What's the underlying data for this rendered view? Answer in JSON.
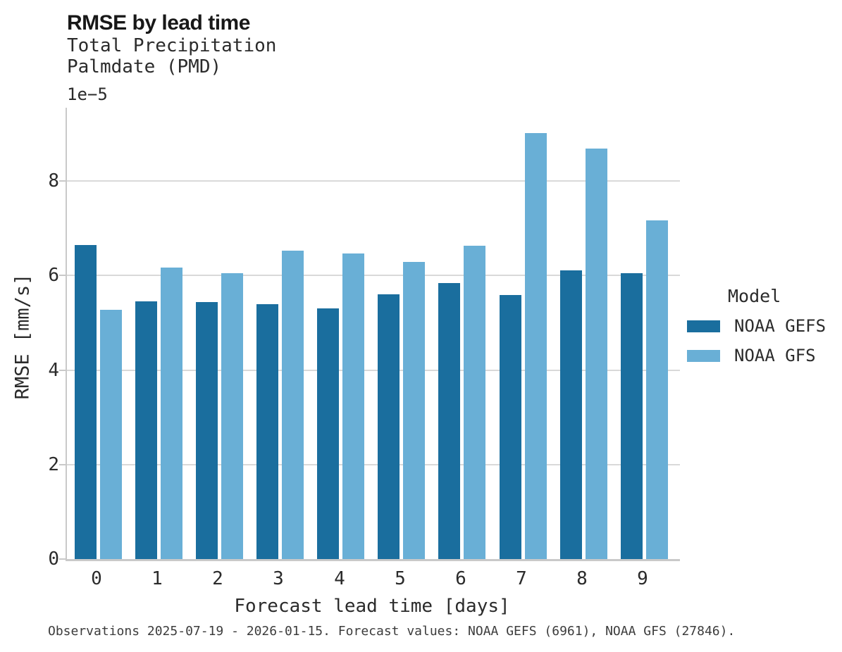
{
  "chart_data": {
    "type": "bar",
    "title": "RMSE by lead time",
    "subtitle": [
      "Total Precipitation",
      "Palmdate (PMD)"
    ],
    "y_offset_label": "1e−5",
    "ylabel": "RMSE [mm/s]",
    "xlabel": "Forecast lead time [days]",
    "categories": [
      "0",
      "1",
      "2",
      "3",
      "4",
      "5",
      "6",
      "7",
      "8",
      "9"
    ],
    "series": [
      {
        "name": "NOAA GEFS",
        "color": "#1a6e9e",
        "values": [
          6.65,
          5.46,
          5.44,
          5.4,
          5.31,
          5.6,
          5.84,
          5.58,
          6.11,
          6.05
        ]
      },
      {
        "name": "NOAA GFS",
        "color": "#69afd6",
        "values": [
          5.27,
          6.17,
          6.05,
          6.52,
          6.47,
          6.29,
          6.63,
          9.02,
          8.68,
          7.16
        ]
      }
    ],
    "value_scale": "1e-5",
    "ylim": [
      0,
      9.55
    ],
    "yticks": [
      0,
      2,
      4,
      6,
      8
    ],
    "grid": "horizontal",
    "legend_title": "Model",
    "legend_position": "right",
    "caption": "Observations 2025-07-19 - 2026-01-15. Forecast values: NOAA GEFS (6961), NOAA GFS (27846)."
  },
  "colors": {
    "gridline": "#d9d9d9",
    "spine": "#c9c9c9",
    "title_text": "#181818",
    "body_text": "#2b2b2b",
    "caption_text": "#3c3c3c",
    "background": "#ffffff"
  }
}
